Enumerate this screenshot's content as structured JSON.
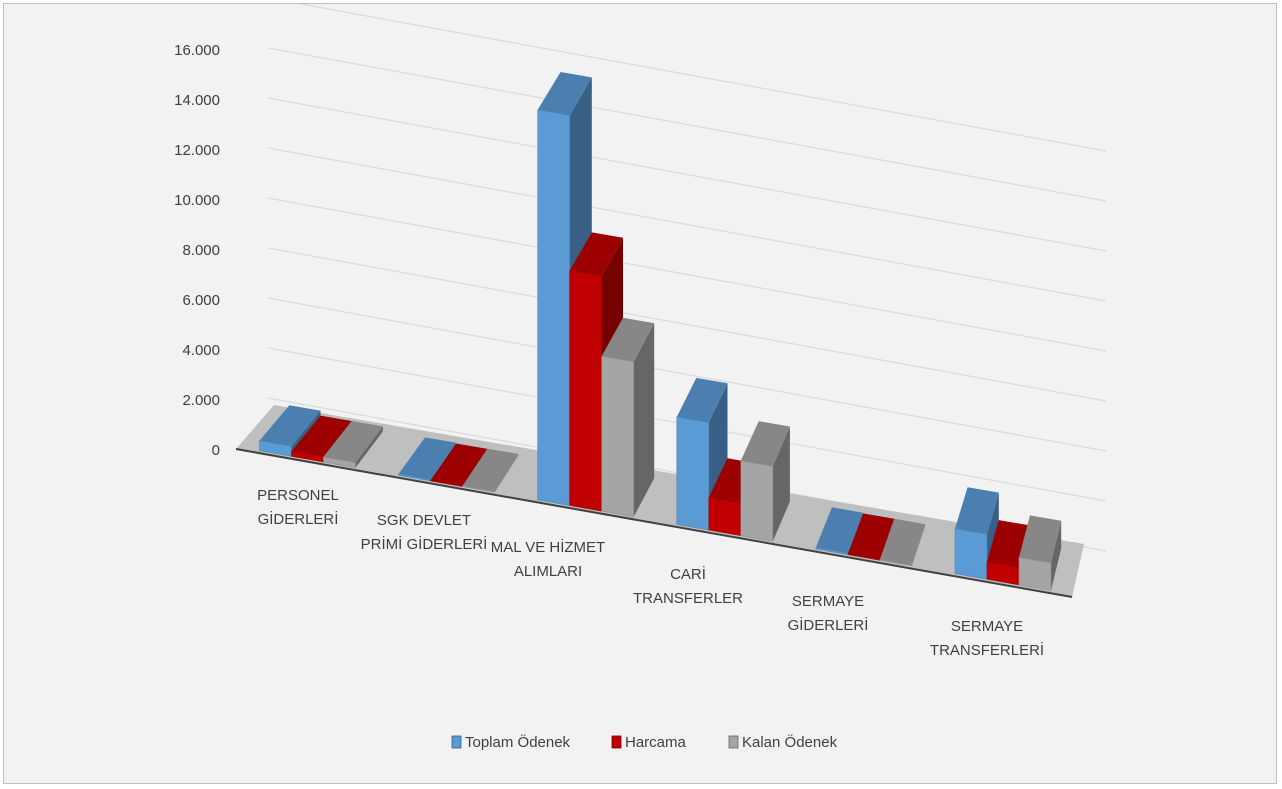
{
  "chart_data": {
    "type": "bar",
    "title": "",
    "xlabel": "",
    "ylabel": "",
    "ylim": [
      0,
      16000
    ],
    "yticks": [
      "0",
      "2.000",
      "4.000",
      "6.000",
      "8.000",
      "10.000",
      "12.000",
      "14.000",
      "16.000"
    ],
    "grid": true,
    "legend_position": "bottom",
    "categories": [
      [
        "PERSONEL",
        "GİDERLERİ"
      ],
      [
        "SGK DEVLET",
        "PRİMİ GİDERLERİ"
      ],
      [
        "MAL VE HİZMET",
        "ALIMLARI"
      ],
      [
        "CARİ",
        "TRANSFERLER"
      ],
      [
        "SERMAYE",
        "GİDERLERİ"
      ],
      [
        "SERMAYE",
        "TRANSFERLERİ"
      ]
    ],
    "series": [
      {
        "name": "Toplam Ödenek",
        "color": "#5b9bd5",
        "values": [
          400,
          50,
          15600,
          4300,
          60,
          1800
        ]
      },
      {
        "name": "Harcama",
        "color": "#c00000",
        "values": [
          200,
          20,
          9400,
          1300,
          30,
          700
        ]
      },
      {
        "name": "Kalan Ödenek",
        "color": "#a5a5a5",
        "values": [
          200,
          30,
          6200,
          3000,
          30,
          1100
        ]
      }
    ]
  }
}
